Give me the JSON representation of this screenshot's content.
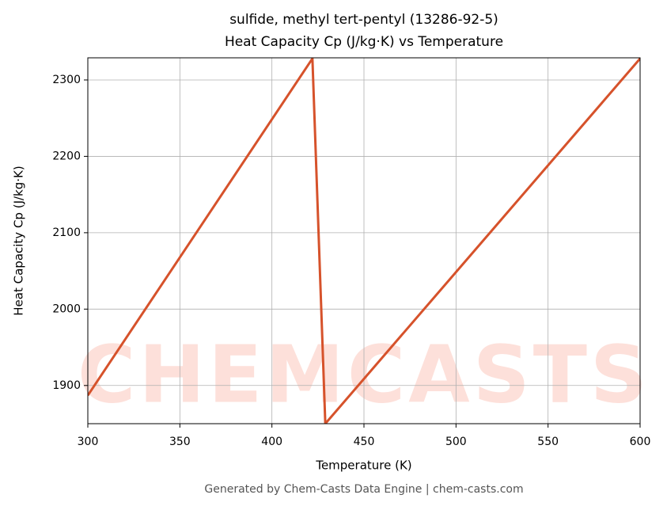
{
  "chart_data": {
    "type": "line",
    "title": "sulfide, methyl tert-pentyl (13286-92-5)",
    "subtitle": "Heat Capacity Cp (J/kg·K) vs Temperature",
    "x_label": "Temperature (K)",
    "y_label": "Heat Capacity Cp (J/kg·K)",
    "x": [
      300,
      422,
      429,
      600
    ],
    "series": [
      {
        "name": "Heat Capacity Cp",
        "color": "#d6522b",
        "values": [
          1887,
          2328,
          1850,
          2328
        ]
      }
    ],
    "xlim": [
      300,
      600
    ],
    "xticks": [
      300,
      350,
      400,
      450,
      500,
      550,
      600
    ],
    "ylim": [
      1850,
      2329
    ],
    "yticks": [
      1900,
      2000,
      2100,
      2200,
      2300
    ],
    "grid": true,
    "watermark": "CHEMCASTS",
    "footer": "Generated by Chem-Casts Data Engine | chem-casts.com"
  }
}
